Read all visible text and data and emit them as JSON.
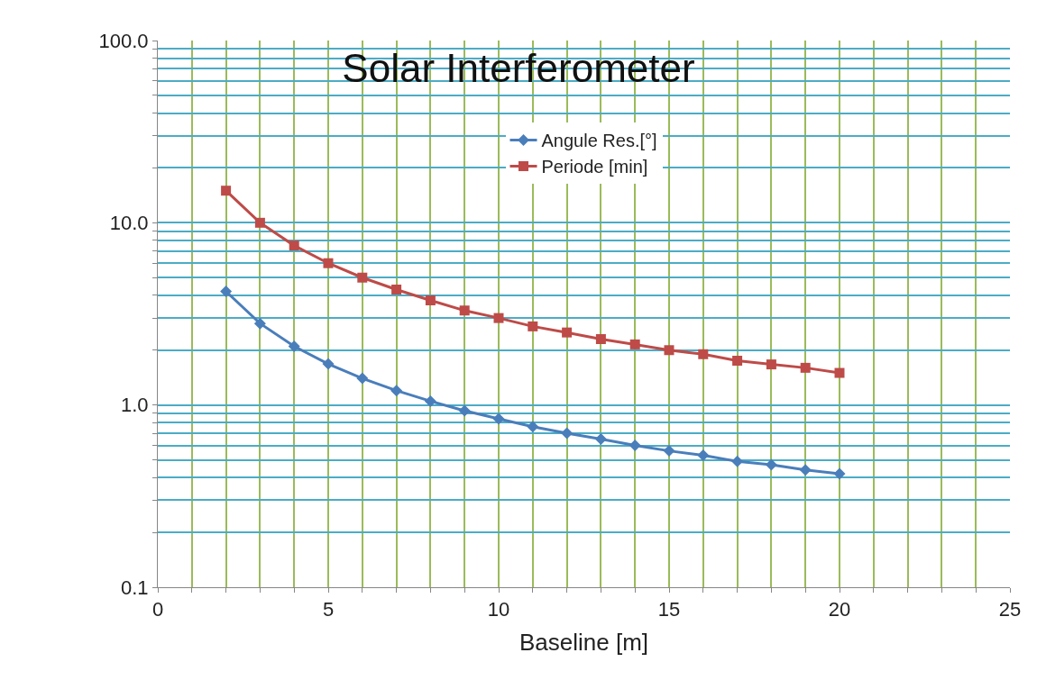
{
  "chart_data": {
    "type": "line",
    "title": "Solar Interferometer",
    "xlabel": "Baseline [m]",
    "x": [
      2,
      3,
      4,
      5,
      6,
      7,
      8,
      9,
      10,
      11,
      12,
      13,
      14,
      15,
      16,
      17,
      18,
      19,
      20
    ],
    "series": [
      {
        "name": "Angule Res.[°]",
        "color": "#4a7ebb",
        "marker": "diamond",
        "values": [
          4.2,
          2.8,
          2.1,
          1.68,
          1.4,
          1.2,
          1.05,
          0.93,
          0.84,
          0.76,
          0.7,
          0.65,
          0.6,
          0.56,
          0.53,
          0.49,
          0.47,
          0.44,
          0.42
        ]
      },
      {
        "name": "Periode [min]",
        "color": "#be4b48",
        "marker": "square",
        "values": [
          15,
          10,
          7.5,
          6,
          5,
          4.3,
          3.75,
          3.3,
          3,
          2.7,
          2.5,
          2.3,
          2.15,
          2,
          1.9,
          1.75,
          1.67,
          1.6,
          1.5
        ]
      }
    ],
    "xlim": [
      0,
      25
    ],
    "xticks": [
      0,
      {
        "value": 1,
        "label": null
      },
      {
        "value": 2,
        "label": null
      },
      {
        "value": 3,
        "label": null
      },
      {
        "value": 4,
        "label": null
      },
      5,
      {
        "value": 6,
        "label": null
      },
      {
        "value": 7,
        "label": null
      },
      {
        "value": 8,
        "label": null
      },
      {
        "value": 9,
        "label": null
      },
      10,
      {
        "value": 11,
        "label": null
      },
      {
        "value": 12,
        "label": null
      },
      {
        "value": 13,
        "label": null
      },
      {
        "value": 14,
        "label": null
      },
      15,
      {
        "value": 16,
        "label": null
      },
      {
        "value": 17,
        "label": null
      },
      {
        "value": 18,
        "label": null
      },
      {
        "value": 19,
        "label": null
      },
      20,
      {
        "value": 21,
        "label": null
      },
      {
        "value": 22,
        "label": null
      },
      {
        "value": 23,
        "label": null
      },
      {
        "value": 24,
        "label": null
      },
      25
    ],
    "ylim": [
      0.1,
      100
    ],
    "yticks": [
      {
        "value": 0.1,
        "label": "0.1"
      },
      {
        "value": 0.2,
        "label": null
      },
      {
        "value": 0.3,
        "label": null
      },
      {
        "value": 0.4,
        "label": null
      },
      {
        "value": 0.5,
        "label": null
      },
      {
        "value": 0.6,
        "label": null
      },
      {
        "value": 0.7,
        "label": null
      },
      {
        "value": 0.8,
        "label": null
      },
      {
        "value": 0.9,
        "label": null
      },
      {
        "value": 1,
        "label": "1.0"
      },
      {
        "value": 2,
        "label": null
      },
      {
        "value": 3,
        "label": null
      },
      {
        "value": 4,
        "label": null
      },
      {
        "value": 5,
        "label": null
      },
      {
        "value": 6,
        "label": null
      },
      {
        "value": 7,
        "label": null
      },
      {
        "value": 8,
        "label": null
      },
      {
        "value": 9,
        "label": null
      },
      {
        "value": 10,
        "label": "10.0"
      },
      {
        "value": 20,
        "label": null
      },
      {
        "value": 30,
        "label": null
      },
      {
        "value": 40,
        "label": null
      },
      {
        "value": 50,
        "label": null
      },
      {
        "value": 60,
        "label": null
      },
      {
        "value": 70,
        "label": null
      },
      {
        "value": 80,
        "label": null
      },
      {
        "value": 90,
        "label": null
      },
      {
        "value": 100,
        "label": "100.0"
      }
    ],
    "log": "y",
    "grid": true,
    "legend": "top",
    "line_style": "solid"
  }
}
